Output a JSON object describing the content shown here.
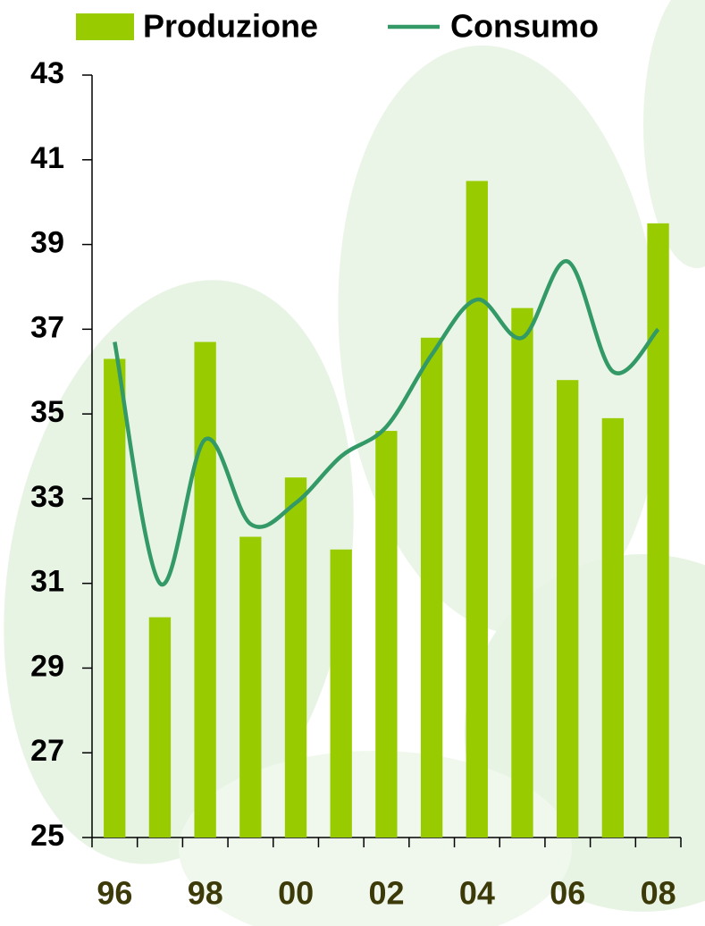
{
  "chart_data": {
    "type": "bar-line",
    "categories": [
      "96",
      null,
      "98",
      null,
      "00",
      null,
      "02",
      null,
      "04",
      null,
      "06",
      null,
      "08"
    ],
    "series": [
      {
        "name": "Produzione",
        "type": "bar",
        "color": "#99cc00",
        "values": [
          36.3,
          30.2,
          36.7,
          32.1,
          33.5,
          31.8,
          34.6,
          36.8,
          40.5,
          37.5,
          35.8,
          34.9,
          39.5
        ]
      },
      {
        "name": "Consumo",
        "type": "line",
        "color": "#339966",
        "values": [
          36.7,
          31.0,
          34.4,
          32.4,
          32.9,
          34.0,
          34.7,
          36.4,
          37.7,
          36.8,
          38.6,
          36.0,
          37.0
        ]
      }
    ],
    "ylim": [
      25,
      43
    ],
    "yticks": [
      25,
      27,
      29,
      31,
      33,
      35,
      37,
      39,
      41,
      43
    ],
    "legend": "top"
  }
}
